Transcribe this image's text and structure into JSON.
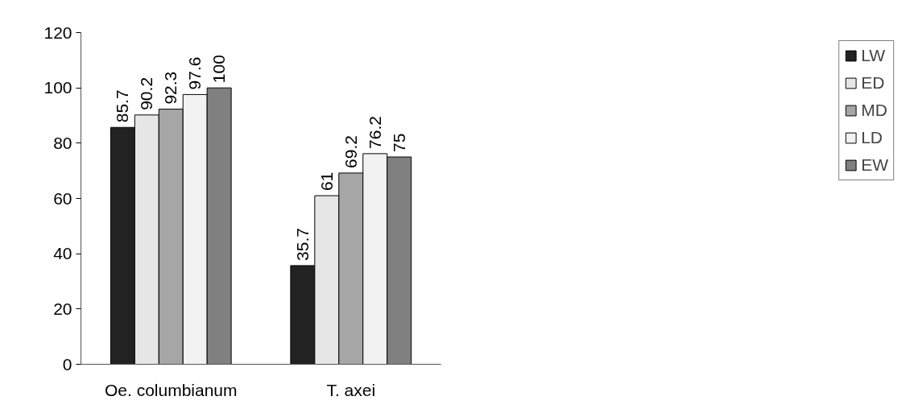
{
  "chart_data": {
    "type": "bar",
    "categories": [
      "Oe. columbianum",
      "T. axei"
    ],
    "series": [
      {
        "name": "LW",
        "color": "#222222",
        "values": [
          85.7,
          35.7
        ]
      },
      {
        "name": "ED",
        "color": "#e6e6e6",
        "values": [
          90.2,
          61
        ]
      },
      {
        "name": "MD",
        "color": "#a6a6a6",
        "values": [
          92.3,
          69.2
        ]
      },
      {
        "name": "LD",
        "color": "#f2f2f2",
        "values": [
          97.6,
          76.2
        ]
      },
      {
        "name": "EW",
        "color": "#808080",
        "values": [
          100,
          75
        ]
      }
    ],
    "ylim": [
      0,
      120
    ],
    "yticks": [
      0,
      20,
      40,
      60,
      80,
      100,
      120
    ],
    "grid": false,
    "legend": "right",
    "data_labels": true
  }
}
